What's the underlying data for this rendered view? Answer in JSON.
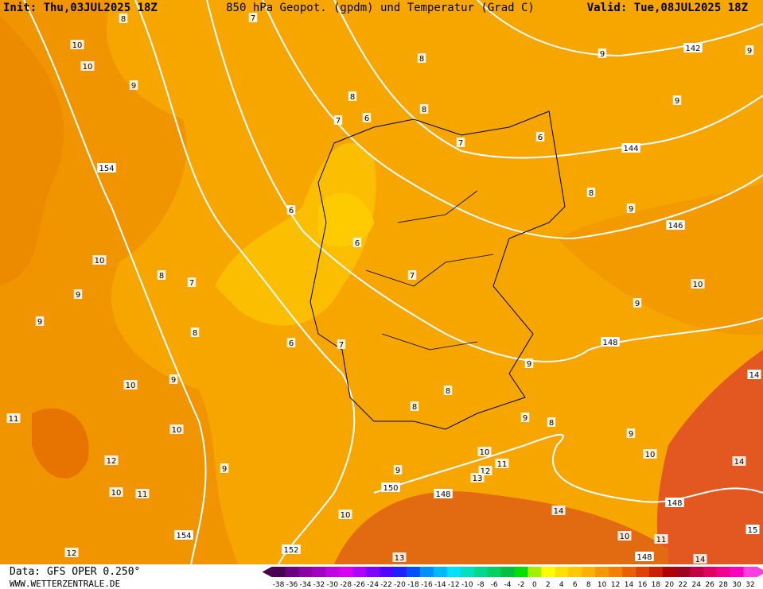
{
  "header": {
    "init": "Init: Thu,03JUL2025 18Z",
    "title": "850 hPa Geopot. (gpdm) und Temperatur (Grad C)",
    "valid": "Valid: Tue,08JUL2025 18Z"
  },
  "footer": {
    "data": "Data: GFS OPER 0.250°",
    "site": "WWW.WETTERZENTRALE.DE"
  },
  "geopotential_labels": [
    142,
    144,
    146,
    148,
    148,
    148,
    150,
    152,
    154,
    154,
    148,
    14,
    15
  ],
  "temperature_labels": [
    10,
    10,
    9,
    10,
    8,
    7,
    9,
    9,
    8,
    10,
    9,
    11,
    10,
    12,
    9,
    10,
    11,
    12,
    13,
    10,
    9,
    10,
    11,
    12,
    13,
    8,
    8,
    9,
    8,
    9,
    10,
    14,
    14,
    11,
    10,
    14,
    9,
    9,
    10,
    9,
    8,
    9,
    9,
    9,
    8,
    8,
    8,
    7,
    6,
    7,
    6,
    6,
    6,
    7,
    6,
    7,
    8,
    7
  ],
  "colorbar": {
    "labels": [
      -38,
      -36,
      -34,
      -32,
      -30,
      -28,
      -26,
      -24,
      -22,
      -20,
      -18,
      -16,
      -14,
      -12,
      -10,
      -8,
      -6,
      -4,
      -2,
      0,
      2,
      4,
      6,
      8,
      10,
      12,
      14,
      16,
      18,
      20,
      22,
      24,
      26,
      28,
      30,
      32
    ],
    "colors": [
      "#4a0050",
      "#6a0080",
      "#8a00a0",
      "#a000c0",
      "#c000e0",
      "#d800f0",
      "#b000ff",
      "#8000ff",
      "#5000ff",
      "#2020ff",
      "#0050ff",
      "#0090ff",
      "#00b8ff",
      "#00e0ff",
      "#00e0c0",
      "#00d890",
      "#00d060",
      "#00c040",
      "#00e000",
      "#a0f000",
      "#ffff00",
      "#ffe000",
      "#ffc800",
      "#ffb000",
      "#f59800",
      "#f08000",
      "#e86000",
      "#e04000",
      "#c82000",
      "#b00000",
      "#a00020",
      "#c00040",
      "#e00060",
      "#f00090",
      "#ff00c0",
      "#ff40e0"
    ]
  }
}
